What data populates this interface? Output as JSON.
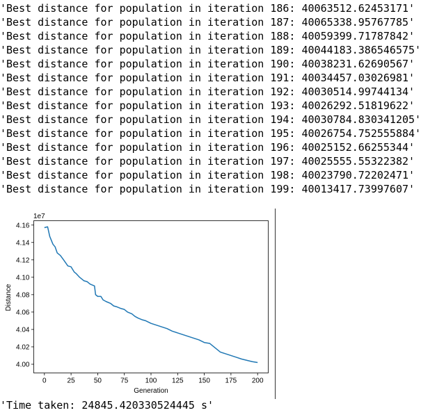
{
  "output": {
    "log_lines": [
      "'Best distance for population in iteration 186: 40063512.62453171'",
      "'Best distance for population in iteration 187: 40065338.95767785'",
      "'Best distance for population in iteration 188: 40059399.71787842'",
      "'Best distance for population in iteration 189: 40044183.386546575'",
      "'Best distance for population in iteration 190: 40038231.62690567'",
      "'Best distance for population in iteration 191: 40034457.03026981'",
      "'Best distance for population in iteration 192: 40030514.99744134'",
      "'Best distance for population in iteration 193: 40026292.51819622'",
      "'Best distance for population in iteration 194: 40030784.830341205'",
      "'Best distance for population in iteration 195: 40026754.752555884'",
      "'Best distance for population in iteration 196: 40025152.66255344'",
      "'Best distance for population in iteration 197: 40025555.55322382'",
      "'Best distance for population in iteration 198: 40023790.72202471'",
      "'Best distance for population in iteration 199: 40013417.73997607'"
    ],
    "time_taken": "'Time taken: 24845.420330524445 s'"
  },
  "chart_data": {
    "type": "line",
    "title": "",
    "xlabel": "Generation",
    "ylabel": "Distance",
    "offset_label": "1e7",
    "xlim": [
      -10,
      210
    ],
    "ylim": [
      3.99,
      4.165
    ],
    "x_ticks": [
      0,
      25,
      50,
      75,
      100,
      125,
      150,
      175,
      200
    ],
    "y_ticks": [
      4.0,
      4.02,
      4.04,
      4.06,
      4.08,
      4.1,
      4.12,
      4.14,
      4.16
    ],
    "y_tick_labels": [
      "4.00",
      "4.02",
      "4.04",
      "4.06",
      "4.08",
      "4.10",
      "4.12",
      "4.14",
      "4.16"
    ],
    "grid": false,
    "color": "#1f77b4",
    "series": [
      {
        "x": [
          0,
          3,
          5,
          8,
          10,
          12,
          15,
          18,
          22,
          25,
          28,
          30,
          33,
          37,
          40,
          43,
          47,
          48,
          50,
          53,
          55,
          58,
          62,
          65,
          68,
          72,
          75,
          78,
          82,
          85,
          88,
          92,
          95,
          100,
          105,
          110,
          115,
          120,
          125,
          130,
          135,
          140,
          145,
          150,
          155,
          160,
          165,
          170,
          175,
          180,
          185,
          190,
          195,
          200
        ],
        "y": [
          4.157,
          4.158,
          4.147,
          4.138,
          4.135,
          4.128,
          4.125,
          4.12,
          4.113,
          4.112,
          4.106,
          4.104,
          4.1,
          4.096,
          4.095,
          4.092,
          4.09,
          4.08,
          4.078,
          4.078,
          4.074,
          4.072,
          4.07,
          4.067,
          4.066,
          4.064,
          4.063,
          4.06,
          4.058,
          4.055,
          4.053,
          4.051,
          4.05,
          4.047,
          4.045,
          4.043,
          4.041,
          4.038,
          4.036,
          4.034,
          4.032,
          4.03,
          4.028,
          4.025,
          4.024,
          4.019,
          4.014,
          4.012,
          4.01,
          4.008,
          4.006,
          4.0045,
          4.003,
          4.002
        ]
      }
    ]
  }
}
